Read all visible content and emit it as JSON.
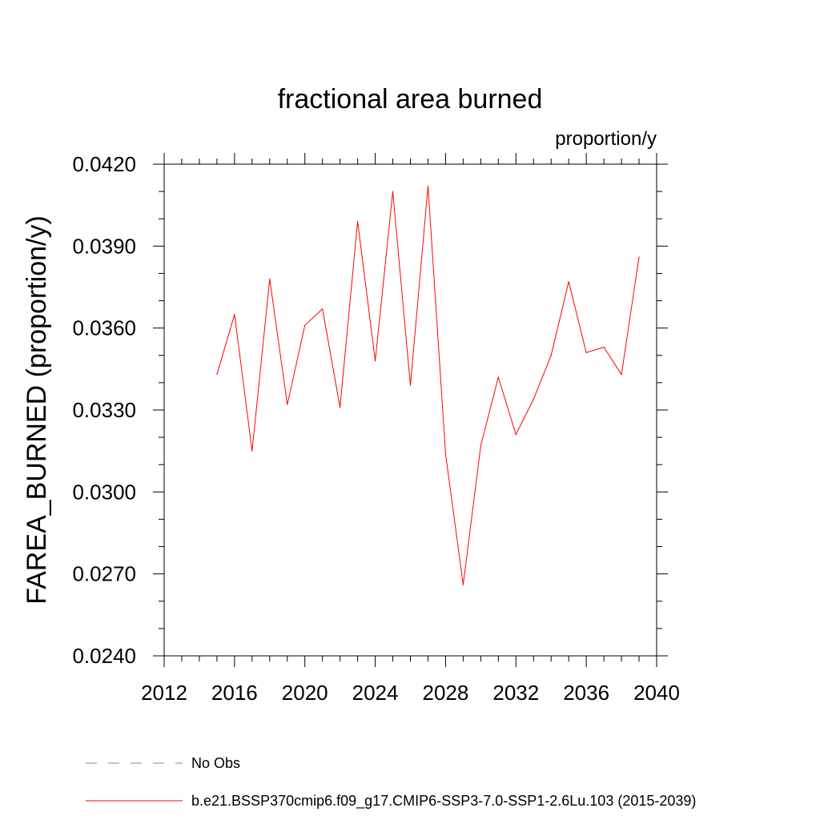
{
  "chart_data": {
    "type": "line",
    "title": "fractional area burned",
    "units": "proportion/y",
    "xlabel": "",
    "ylabel": "FAREA_BURNED  (proportion/y)",
    "xlim": [
      2012,
      2040
    ],
    "ylim": [
      0.024,
      0.042
    ],
    "x_ticks": [
      2012,
      2016,
      2020,
      2024,
      2028,
      2032,
      2036,
      2040
    ],
    "x_tick_labels": [
      "2012",
      "2016",
      "2020",
      "2024",
      "2028",
      "2032",
      "2036",
      "2040"
    ],
    "y_ticks": [
      0.024,
      0.027,
      0.03,
      0.033,
      0.036,
      0.039,
      0.042
    ],
    "y_tick_labels": [
      "0.0240",
      "0.0270",
      "0.0300",
      "0.0330",
      "0.0360",
      "0.0390",
      "0.0420"
    ],
    "legend_position": "bottom",
    "series": [
      {
        "name": "b.e21.BSSP370cmip6.f09_g17.CMIP6-SSP3-7.0-SSP1-2.6Lu.103 (2015-2039)",
        "color": "#ff0000",
        "style": "solid",
        "x": [
          2015,
          2016,
          2017,
          2018,
          2019,
          2020,
          2021,
          2022,
          2023,
          2024,
          2025,
          2026,
          2027,
          2028,
          2029,
          2030,
          2031,
          2032,
          2033,
          2034,
          2035,
          2036,
          2037,
          2038,
          2039
        ],
        "values": [
          0.0343,
          0.0365,
          0.0315,
          0.0378,
          0.0332,
          0.0361,
          0.0367,
          0.0331,
          0.0399,
          0.0348,
          0.041,
          0.0339,
          0.0412,
          0.0314,
          0.0266,
          0.0317,
          0.0342,
          0.0321,
          0.0334,
          0.035,
          0.0377,
          0.0351,
          0.0353,
          0.0343,
          0.0386
        ]
      }
    ],
    "legend": [
      {
        "label": "No Obs",
        "color": "#8a7bbf",
        "style": "dashed"
      },
      {
        "label": "b.e21.BSSP370cmip6.f09_g17.CMIP6-SSP3-7.0-SSP1-2.6Lu.103 (2015-2039)",
        "color": "#ff0000",
        "style": "solid"
      }
    ]
  }
}
